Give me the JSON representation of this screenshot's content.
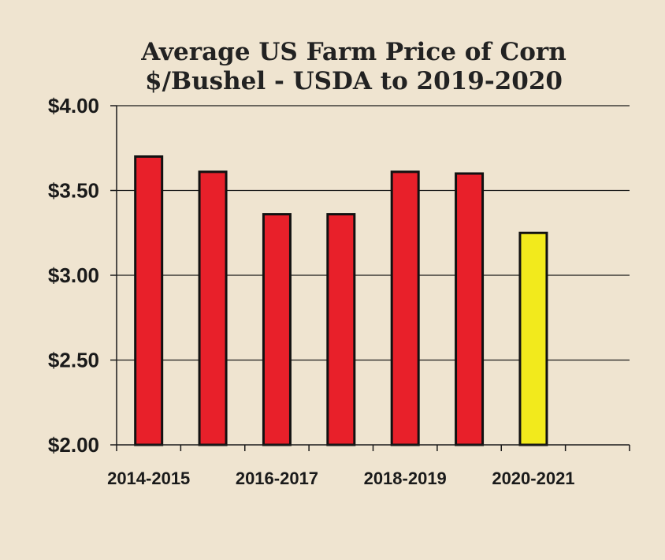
{
  "chart_data": {
    "type": "bar",
    "title": "Average US Farm Price of Corn",
    "subtitle": "$/Bushel - USDA to 2019-2020",
    "xlabel": "",
    "ylabel": "",
    "ylim": [
      2.0,
      4.0
    ],
    "y_ticks": [
      "$2.00",
      "$2.50",
      "$3.00",
      "$3.50",
      "$4.00"
    ],
    "y_tick_values": [
      2.0,
      2.5,
      3.0,
      3.5,
      4.0
    ],
    "x_tick_labels": [
      "2014-2015",
      "2016-2017",
      "2018-2019",
      "2020-2021"
    ],
    "categories": [
      "2014-2015",
      "2015-2016",
      "2016-2017",
      "2017-2018",
      "2018-2019",
      "2019-2020",
      "2020-2021"
    ],
    "values": [
      3.7,
      3.61,
      3.36,
      3.36,
      3.61,
      3.6,
      3.25
    ],
    "bar_colors": [
      "#e8202a",
      "#e8202a",
      "#e8202a",
      "#e8202a",
      "#e8202a",
      "#e8202a",
      "#f2ea1c"
    ],
    "grid": true,
    "background": "#efe4d0"
  }
}
